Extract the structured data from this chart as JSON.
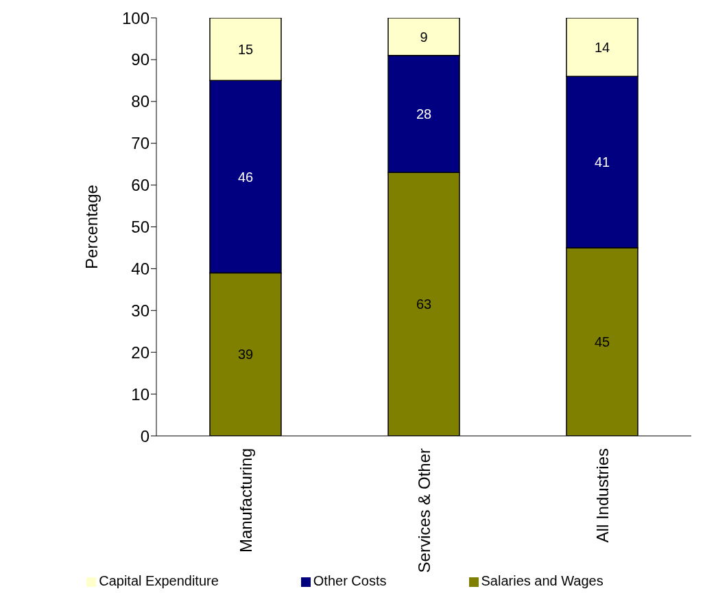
{
  "chart_data": {
    "type": "bar",
    "stacked": true,
    "ylabel": "Percentage",
    "categories": [
      "Manufacturing",
      "Services & Other",
      "All Industries"
    ],
    "series": [
      {
        "name": "Salaries and Wages",
        "color": "#808000",
        "values": [
          39,
          63,
          45
        ]
      },
      {
        "name": "Other Costs",
        "color": "#000080",
        "values": [
          46,
          28,
          41
        ]
      },
      {
        "name": "Capital Expenditure",
        "color": "#ffffcc",
        "values": [
          15,
          9,
          14
        ]
      }
    ],
    "ylim": [
      0,
      100
    ],
    "yticks": [
      0,
      10,
      20,
      30,
      40,
      50,
      60,
      70,
      80,
      90,
      100
    ],
    "grid": false,
    "legend": "bottom",
    "data_labels": true
  }
}
